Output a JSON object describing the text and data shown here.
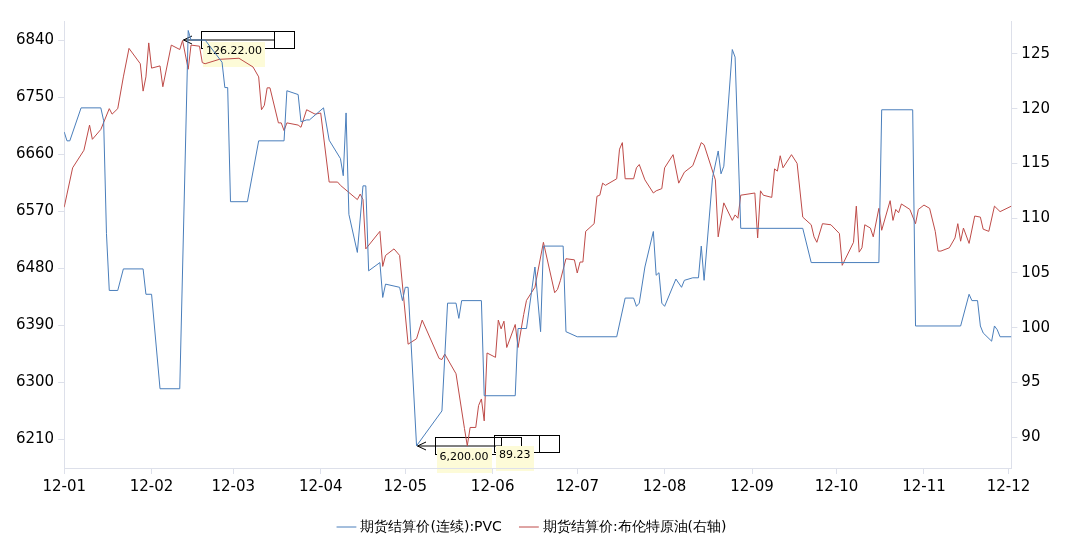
{
  "chart_data": {
    "type": "line",
    "xlim": [
      "2012-01-01",
      "2012-12-02"
    ],
    "xticks": [
      {
        "value": "2012-01-01",
        "label": "12-01"
      },
      {
        "value": "2012-02-01",
        "label": "12-02"
      },
      {
        "value": "2012-03-01",
        "label": "12-03"
      },
      {
        "value": "2012-04-01",
        "label": "12-04"
      },
      {
        "value": "2012-05-01",
        "label": "12-05"
      },
      {
        "value": "2012-06-01",
        "label": "12-06"
      },
      {
        "value": "2012-07-01",
        "label": "12-07"
      },
      {
        "value": "2012-08-01",
        "label": "12-08"
      },
      {
        "value": "2012-09-01",
        "label": "12-09"
      },
      {
        "value": "2012-10-01",
        "label": "12-10"
      },
      {
        "value": "2012-11-01",
        "label": "12-11"
      },
      {
        "value": "2012-12-01",
        "label": "12-12"
      }
    ],
    "ylim": [
      6165,
      6870
    ],
    "yticks": [
      6210,
      6300,
      6390,
      6480,
      6570,
      6660,
      6750,
      6840
    ],
    "y2lim": [
      87.2,
      128
    ],
    "y2ticks": [
      90,
      95,
      100,
      105,
      110,
      115,
      120,
      125
    ],
    "grid": false,
    "legend": "bottom",
    "marker": "none",
    "line_style": "solid",
    "series": [
      {
        "name": "期货结算价(连续):PVC",
        "color": "#4a7ebb",
        "x": [
          "2012-01-01",
          "2012-01-02",
          "2012-01-03",
          "2012-01-07",
          "2012-01-14",
          "2012-01-15",
          "2012-01-16",
          "2012-01-17",
          "2012-01-20",
          "2012-01-22",
          "2012-01-29",
          "2012-01-30",
          "2012-02-01",
          "2012-02-04",
          "2012-02-11",
          "2012-02-14",
          "2012-02-15",
          "2012-02-20",
          "2012-02-26",
          "2012-02-27",
          "2012-02-28",
          "2012-02-29",
          "2012-03-06",
          "2012-03-10",
          "2012-03-19",
          "2012-03-20",
          "2012-03-24",
          "2012-03-25",
          "2012-03-27",
          "2012-03-28",
          "2012-04-02",
          "2012-04-04",
          "2012-04-08",
          "2012-04-09",
          "2012-04-10",
          "2012-04-11",
          "2012-04-14",
          "2012-04-16",
          "2012-04-17",
          "2012-04-18",
          "2012-04-22",
          "2012-04-23",
          "2012-04-24",
          "2012-04-29",
          "2012-04-30",
          "2012-05-01",
          "2012-05-02",
          "2012-05-05",
          "2012-05-14",
          "2012-05-16",
          "2012-05-19",
          "2012-05-20",
          "2012-05-21",
          "2012-05-28",
          "2012-05-29",
          "2012-06-09",
          "2012-06-10",
          "2012-06-13",
          "2012-06-16",
          "2012-06-18",
          "2012-06-19",
          "2012-06-26",
          "2012-06-27",
          "2012-07-01",
          "2012-07-15",
          "2012-07-18",
          "2012-07-21",
          "2012-07-22",
          "2012-07-23",
          "2012-07-25",
          "2012-07-28",
          "2012-07-29",
          "2012-07-30",
          "2012-07-31",
          "2012-08-01",
          "2012-08-05",
          "2012-08-07",
          "2012-08-08",
          "2012-08-11",
          "2012-08-13",
          "2012-08-14",
          "2012-08-15",
          "2012-08-18",
          "2012-08-20",
          "2012-08-21",
          "2012-08-22",
          "2012-08-25",
          "2012-08-26",
          "2012-08-28",
          "2012-09-19",
          "2012-09-22",
          "2012-10-16",
          "2012-10-17",
          "2012-10-28",
          "2012-10-29",
          "2012-11-14",
          "2012-11-17",
          "2012-11-18",
          "2012-11-20",
          "2012-11-21",
          "2012-11-22",
          "2012-11-25",
          "2012-11-26",
          "2012-11-27",
          "2012-11-28",
          "2012-12-02"
        ],
        "values": [
          6695,
          6681,
          6681,
          6733,
          6733,
          6713,
          6535,
          6445,
          6445,
          6479,
          6479,
          6439,
          6439,
          6290,
          6290,
          6855,
          6840,
          6840,
          6805,
          6765,
          6765,
          6585,
          6585,
          6681,
          6681,
          6760,
          6754,
          6711,
          6714,
          6714,
          6733,
          6682,
          6653,
          6626,
          6725,
          6565,
          6505,
          6610,
          6610,
          6476,
          6489,
          6434,
          6455,
          6450,
          6429,
          6450,
          6450,
          6200,
          6255,
          6425,
          6425,
          6401,
          6429,
          6429,
          6279,
          6279,
          6385,
          6385,
          6482,
          6380,
          6515,
          6515,
          6380,
          6372,
          6372,
          6433,
          6433,
          6420,
          6425,
          6482,
          6538,
          6469,
          6473,
          6425,
          6420,
          6463,
          6450,
          6461,
          6465,
          6465,
          6515,
          6461,
          6623,
          6665,
          6629,
          6641,
          6825,
          6813,
          6543,
          6543,
          6489,
          6489,
          6730,
          6730,
          6389,
          6389,
          6439,
          6429,
          6429,
          6389,
          6378,
          6365,
          6389,
          6383,
          6372,
          6372
        ]
      },
      {
        "name": "期货结算价:布伦特原油(右轴)",
        "color": "#be4b48",
        "axis": "y2",
        "x": [
          "2012-01-01",
          "2012-01-02",
          "2012-01-04",
          "2012-01-08",
          "2012-01-10",
          "2012-01-11",
          "2012-01-14",
          "2012-01-17",
          "2012-01-18",
          "2012-01-20",
          "2012-01-22",
          "2012-01-24",
          "2012-01-28",
          "2012-01-29",
          "2012-01-30",
          "2012-01-31",
          "2012-02-01",
          "2012-02-04",
          "2012-02-05",
          "2012-02-08",
          "2012-02-11",
          "2012-02-12",
          "2012-02-14",
          "2012-02-15",
          "2012-02-18",
          "2012-02-19",
          "2012-02-20",
          "2012-02-25",
          "2012-03-03",
          "2012-03-08",
          "2012-03-10",
          "2012-03-11",
          "2012-03-12",
          "2012-03-13",
          "2012-03-14",
          "2012-03-17",
          "2012-03-18",
          "2012-03-19",
          "2012-03-20",
          "2012-03-24",
          "2012-03-25",
          "2012-03-27",
          "2012-03-30",
          "2012-04-01",
          "2012-04-04",
          "2012-04-07",
          "2012-04-08",
          "2012-04-14",
          "2012-04-15",
          "2012-04-16",
          "2012-04-17",
          "2012-04-22",
          "2012-04-23",
          "2012-04-24",
          "2012-04-27",
          "2012-04-29",
          "2012-05-02",
          "2012-05-05",
          "2012-05-07",
          "2012-05-13",
          "2012-05-14",
          "2012-05-15",
          "2012-05-19",
          "2012-05-22",
          "2012-05-23",
          "2012-05-24",
          "2012-05-26",
          "2012-05-27",
          "2012-05-28",
          "2012-05-29",
          "2012-05-30",
          "2012-06-02",
          "2012-06-03",
          "2012-06-04",
          "2012-06-05",
          "2012-06-06",
          "2012-06-09",
          "2012-06-10",
          "2012-06-12",
          "2012-06-13",
          "2012-06-16",
          "2012-06-17",
          "2012-06-19",
          "2012-06-23",
          "2012-06-24",
          "2012-06-25",
          "2012-06-27",
          "2012-06-30",
          "2012-07-01",
          "2012-07-02",
          "2012-07-03",
          "2012-07-04",
          "2012-07-07",
          "2012-07-08",
          "2012-07-09",
          "2012-07-10",
          "2012-07-11",
          "2012-07-15",
          "2012-07-16",
          "2012-07-17",
          "2012-07-18",
          "2012-07-21",
          "2012-07-22",
          "2012-07-23",
          "2012-07-25",
          "2012-07-28",
          "2012-07-29",
          "2012-07-31",
          "2012-08-01",
          "2012-08-04",
          "2012-08-06",
          "2012-08-08",
          "2012-08-11",
          "2012-08-14",
          "2012-08-15",
          "2012-08-19",
          "2012-08-20",
          "2012-08-22",
          "2012-08-25",
          "2012-08-26",
          "2012-08-27",
          "2012-08-28",
          "2012-09-02",
          "2012-09-03",
          "2012-09-04",
          "2012-09-05",
          "2012-09-08",
          "2012-09-09",
          "2012-09-10",
          "2012-09-11",
          "2012-09-12",
          "2012-09-15",
          "2012-09-17",
          "2012-09-19",
          "2012-09-22",
          "2012-09-23",
          "2012-09-24",
          "2012-09-26",
          "2012-09-29",
          "2012-10-02",
          "2012-10-03",
          "2012-10-07",
          "2012-10-08",
          "2012-10-09",
          "2012-10-10",
          "2012-10-11",
          "2012-10-13",
          "2012-10-14",
          "2012-10-16",
          "2012-10-17",
          "2012-10-20",
          "2012-10-21",
          "2012-10-22",
          "2012-10-23",
          "2012-10-24",
          "2012-10-27",
          "2012-10-29",
          "2012-10-30",
          "2012-11-01",
          "2012-11-03",
          "2012-11-05",
          "2012-11-06",
          "2012-11-07",
          "2012-11-10",
          "2012-11-12",
          "2012-11-13",
          "2012-11-14",
          "2012-11-15",
          "2012-11-17",
          "2012-11-19",
          "2012-11-21",
          "2012-11-22",
          "2012-11-24",
          "2012-11-26",
          "2012-11-28",
          "2012-12-02"
        ],
        "values": [
          111.0,
          112.2,
          114.6,
          116.2,
          118.5,
          117.2,
          118.1,
          120.0,
          119.5,
          120.0,
          122.9,
          125.5,
          124.1,
          121.6,
          122.9,
          126.0,
          123.7,
          123.9,
          122.0,
          125.8,
          125.4,
          126.22,
          123.6,
          125.8,
          125.7,
          124.2,
          124.1,
          124.5,
          124.6,
          123.8,
          122.9,
          119.9,
          120.3,
          121.9,
          121.9,
          118.7,
          118.7,
          118.0,
          118.7,
          118.5,
          118.3,
          119.9,
          119.5,
          119.6,
          113.3,
          113.3,
          113.0,
          111.7,
          112.2,
          111.7,
          107.2,
          108.8,
          105.6,
          106.6,
          107.2,
          106.6,
          98.5,
          99.0,
          100.7,
          97.2,
          97.1,
          97.6,
          95.8,
          90.8,
          89.23,
          90.9,
          90.9,
          92.9,
          93.5,
          91.5,
          97.7,
          97.3,
          100.7,
          99.9,
          100.6,
          98.2,
          100.3,
          98.2,
          101.2,
          102.5,
          103.7,
          105.1,
          107.8,
          103.2,
          103.5,
          104.3,
          106.3,
          106.2,
          105.0,
          106.0,
          106.0,
          108.8,
          109.5,
          112.0,
          112.1,
          113.2,
          113.0,
          113.6,
          116.3,
          116.9,
          113.6,
          113.6,
          114.6,
          114.9,
          113.5,
          112.3,
          112.5,
          112.7,
          114.6,
          115.8,
          113.2,
          114.2,
          114.8,
          116.9,
          116.7,
          113.5,
          108.3,
          111.4,
          109.8,
          110.3,
          110.0,
          112.1,
          112.3,
          108.2,
          112.5,
          112.1,
          111.9,
          114.5,
          114.3,
          115.7,
          114.6,
          115.8,
          115.0,
          110.1,
          109.4,
          108.3,
          107.8,
          109.5,
          109.4,
          108.6,
          105.7,
          107.8,
          111.1,
          106.9,
          107.3,
          109.4,
          109.1,
          108.3,
          110.9,
          108.9,
          111.6,
          109.8,
          110.8,
          110.5,
          111.3,
          110.8,
          109.5,
          110.8,
          111.2,
          110.9,
          108.8,
          107.0,
          107.0,
          107.3,
          108.2,
          109.5,
          107.9,
          109.1,
          107.7,
          110.2,
          110.1,
          109.0,
          108.8,
          111.1,
          110.6,
          111.1
        ]
      }
    ],
    "annotations": [
      "126.22.00",
      {
        "text": "6,200.00",
        "x": "2012-05-05",
        "y": 6200
      },
      "89.23"
    ]
  }
}
